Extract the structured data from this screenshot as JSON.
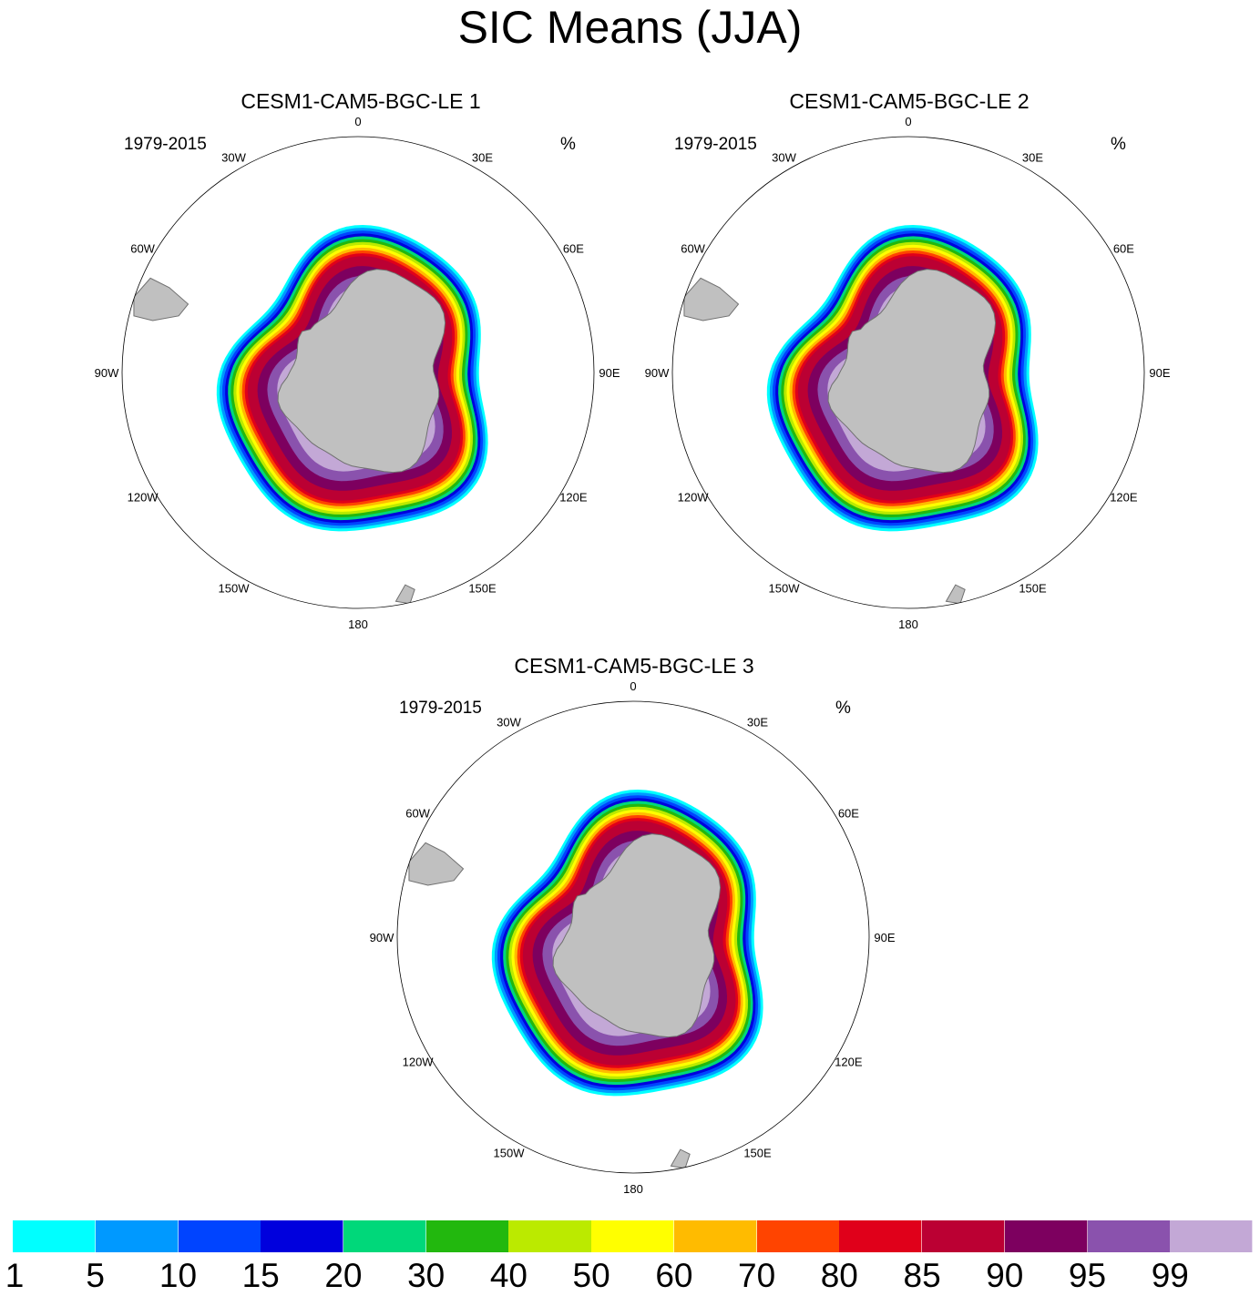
{
  "title": "SIC Means (JJA)",
  "panels": [
    {
      "title": "CESM1-CAM5-BGC-LE 1",
      "period": "1979-2015",
      "units": "%"
    },
    {
      "title": "CESM1-CAM5-BGC-LE 2",
      "period": "1979-2015",
      "units": "%"
    },
    {
      "title": "CESM1-CAM5-BGC-LE 3",
      "period": "1979-2015",
      "units": "%"
    }
  ],
  "longitude_labels": [
    "0",
    "30E",
    "60E",
    "90E",
    "120E",
    "150E",
    "180",
    "150W",
    "120W",
    "90W",
    "60W",
    "30W"
  ],
  "colorbar": {
    "ticks": [
      "1",
      "5",
      "10",
      "15",
      "20",
      "30",
      "40",
      "50",
      "60",
      "70",
      "80",
      "85",
      "90",
      "95",
      "99"
    ],
    "colors": [
      "#00ffff",
      "#0099ff",
      "#0044ff",
      "#0000dd",
      "#00d87a",
      "#22b80e",
      "#bbea00",
      "#ffff00",
      "#ffbb00",
      "#ff4400",
      "#e0001a",
      "#bb0033",
      "#7d005f",
      "#8a52ad",
      "#c3a8d6"
    ]
  },
  "colors": {
    "land": "#c0c0c0",
    "coast": "#707070",
    "frame": "#000000"
  }
}
